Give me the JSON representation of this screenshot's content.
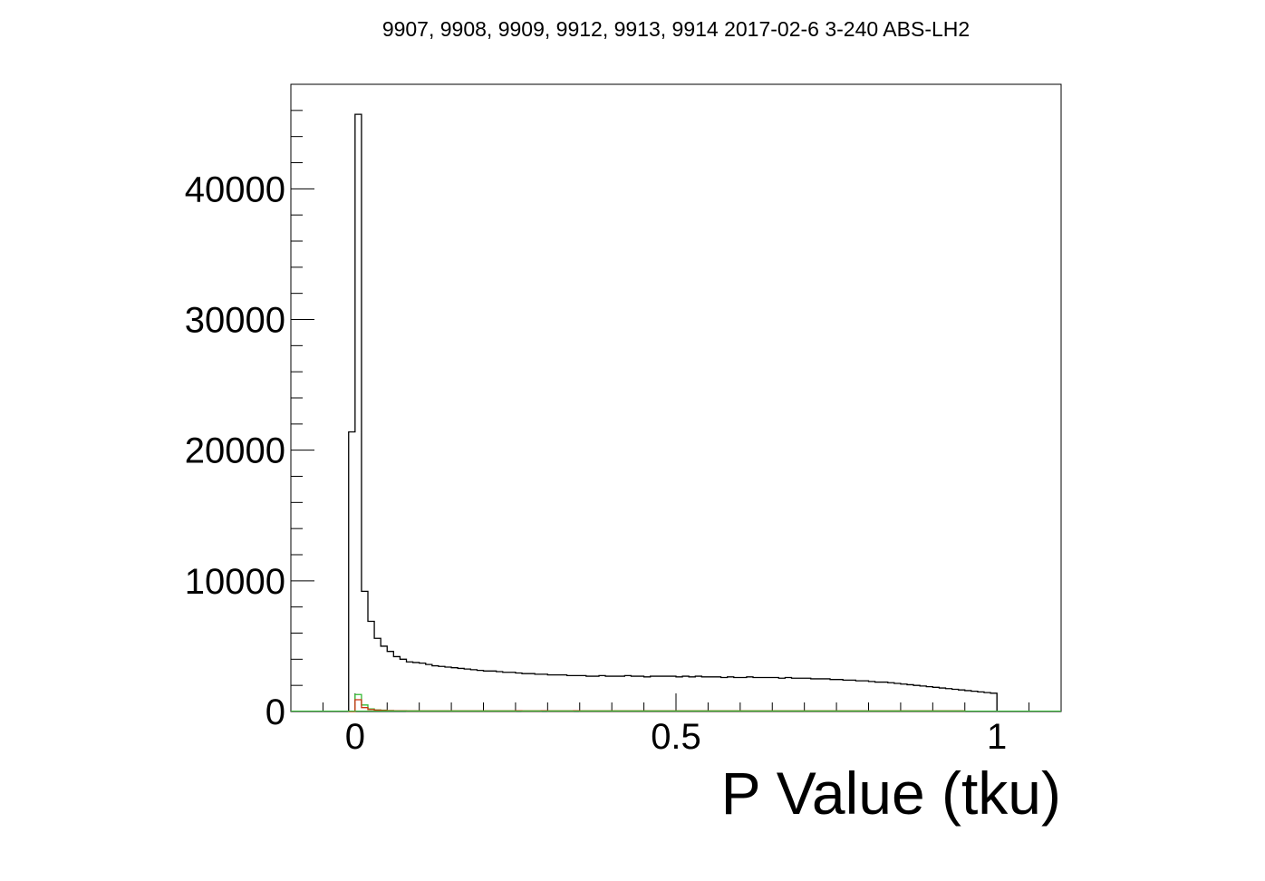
{
  "chart_data": {
    "type": "histogram",
    "title": "9907, 9908, 9909, 9912, 9913, 9914 2017-02-6 3-240 ABS-LH2",
    "xlabel": "P Value (tku)",
    "ylabel": "",
    "xlim": [
      -0.1,
      1.1
    ],
    "ylim": [
      0,
      48000
    ],
    "x_ticks": [
      {
        "value": 0,
        "label": "0"
      },
      {
        "value": 0.5,
        "label": "0.5"
      },
      {
        "value": 1,
        "label": "1"
      }
    ],
    "y_ticks": [
      {
        "value": 0,
        "label": "0"
      },
      {
        "value": 10000,
        "label": "10000"
      },
      {
        "value": 20000,
        "label": "20000"
      },
      {
        "value": 30000,
        "label": "30000"
      },
      {
        "value": 40000,
        "label": "40000"
      }
    ],
    "bin_width": 0.01,
    "series": [
      {
        "color": "#000000",
        "x_start": -0.01,
        "values": [
          21400,
          45700,
          9200,
          6900,
          5600,
          5000,
          4600,
          4200,
          4000,
          3800,
          3750,
          3700,
          3600,
          3500,
          3450,
          3400,
          3350,
          3300,
          3250,
          3200,
          3150,
          3100,
          3100,
          3050,
          3000,
          3000,
          2950,
          2900,
          2900,
          2850,
          2850,
          2800,
          2800,
          2800,
          2750,
          2750,
          2750,
          2700,
          2700,
          2750,
          2700,
          2700,
          2700,
          2750,
          2700,
          2700,
          2650,
          2700,
          2700,
          2700,
          2700,
          2650,
          2700,
          2650,
          2700,
          2650,
          2650,
          2650,
          2600,
          2650,
          2600,
          2600,
          2650,
          2600,
          2600,
          2600,
          2600,
          2550,
          2600,
          2550,
          2550,
          2550,
          2500,
          2500,
          2500,
          2450,
          2450,
          2400,
          2400,
          2350,
          2350,
          2300,
          2250,
          2250,
          2200,
          2150,
          2100,
          2050,
          2000,
          1950,
          1900,
          1850,
          1800,
          1750,
          1700,
          1650,
          1600,
          1550,
          1500,
          1450,
          1400
        ]
      },
      {
        "color": "#cc3311",
        "x_start": -0.01,
        "values": [
          0,
          900,
          300,
          150,
          100,
          80,
          60,
          50,
          50,
          40,
          40,
          40,
          40,
          40,
          40,
          40,
          40,
          40,
          40,
          40,
          40,
          40,
          40,
          40,
          40,
          40,
          60,
          40,
          40,
          40,
          60,
          40,
          40,
          40,
          40,
          60,
          40,
          40,
          40,
          40,
          40,
          40,
          40,
          40,
          40,
          40,
          40,
          40,
          40,
          40,
          40,
          40,
          40,
          40,
          40,
          40,
          40,
          40,
          40,
          40,
          40,
          40,
          40,
          40,
          40,
          40,
          40,
          40,
          40,
          40,
          40,
          40,
          40,
          40,
          40,
          40,
          40,
          40,
          40,
          40,
          40,
          40,
          40,
          40,
          40,
          40,
          40,
          40,
          40,
          40,
          40,
          40,
          40,
          40,
          40,
          40
        ]
      },
      {
        "color": "#33bb33",
        "x_start": -0.01,
        "values": [
          0,
          1300,
          500,
          200,
          120,
          100,
          80,
          60,
          60,
          50,
          50,
          50,
          50,
          50,
          50,
          50,
          50,
          50,
          50,
          50,
          50,
          50,
          50,
          50,
          50,
          50,
          50,
          50,
          50,
          50,
          50,
          50,
          50,
          50,
          50,
          50,
          50,
          50,
          50,
          50,
          50,
          50,
          50,
          50,
          50,
          50,
          50,
          50,
          50,
          50,
          50,
          50,
          50,
          50,
          50,
          50,
          50,
          50,
          50,
          50,
          50,
          50,
          50,
          50,
          50,
          50,
          50,
          50,
          50,
          50,
          50,
          50,
          50,
          50,
          50,
          50,
          50,
          50,
          50,
          50,
          50,
          50,
          50,
          50,
          50,
          50,
          50,
          50,
          50,
          50,
          50,
          50,
          50,
          50,
          50,
          50
        ]
      }
    ]
  }
}
